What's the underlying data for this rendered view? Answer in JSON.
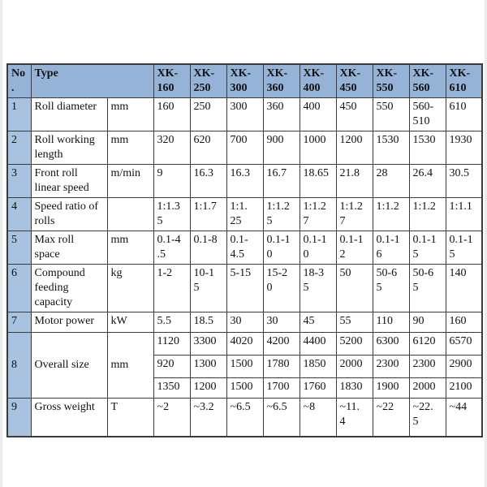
{
  "colors": {
    "header_bg": "#95b3d7",
    "number_col_bg": "#a9c2df",
    "border": "#3a3a3a",
    "text": "#111111"
  },
  "table": {
    "header": {
      "no": "No.",
      "type": "Type",
      "models": [
        "XK-160",
        "XK-250",
        "XK-300",
        "XK-360",
        "XK-400",
        "XK-450",
        "XK-550",
        "XK-560",
        "XK-610"
      ]
    },
    "rows": [
      {
        "no": "1",
        "type": "Roll diameter",
        "unit": "mm",
        "values": [
          "160",
          "250",
          "300",
          "360",
          "400",
          "450",
          "550",
          "560-\n510",
          "610"
        ]
      },
      {
        "no": "2",
        "type": "Roll working\nlength",
        "unit": "mm",
        "values": [
          "320",
          "620",
          "700",
          "900",
          "1000",
          "1200",
          "1530",
          "1530",
          "1930"
        ]
      },
      {
        "no": "3",
        "type": "Front roll\nlinear speed",
        "unit": "m/min",
        "values": [
          "9",
          "16.3",
          "16.3",
          "16.7",
          "18.65",
          "21.8",
          "28",
          "26.4",
          "30.5"
        ]
      },
      {
        "no": "4",
        "type": "Speed ratio of\nrolls",
        "unit": "",
        "values": [
          "1:1.3\n5",
          "1:1.7",
          "1:1.\n25",
          "1:1.2\n5",
          "1:1.2\n7",
          "1:1.2\n7",
          "1:1.2",
          "1:1.2",
          "1:1.1"
        ]
      },
      {
        "no": "5",
        "type": "Max roll\nspace",
        "unit": "mm",
        "values": [
          "0.1-4\n.5",
          "0.1-8",
          "0.1-\n4.5",
          "0.1-1\n0",
          "0.1-1\n0",
          "0.1-1\n2",
          "0.1-1\n6",
          "0.1-1\n5",
          "0.1-1\n5"
        ]
      },
      {
        "no": "6",
        "type": "Compound\nfeeding\ncapacity",
        "unit": "kg",
        "values": [
          "1-2",
          "10-1\n5",
          "5-15",
          "15-2\n0",
          "18-3\n5",
          "50",
          "50-6\n5",
          "50-6\n5",
          "140"
        ]
      },
      {
        "no": "7",
        "type": "Motor power",
        "unit": "kW",
        "values": [
          "5.5",
          "18.5",
          "30",
          "30",
          "45",
          "55",
          "110",
          "90",
          "160"
        ]
      },
      {
        "no": "8",
        "type": "Overall size",
        "unit": "mm",
        "subrows": [
          [
            "1120",
            "3300",
            "4020",
            "4200",
            "4400",
            "5200",
            "6300",
            "6120",
            "6570"
          ],
          [
            "920",
            "1300",
            "1500",
            "1780",
            "1850",
            "2000",
            "2300",
            "2300",
            "2900"
          ],
          [
            "1350",
            "1200",
            "1500",
            "1700",
            "1760",
            "1830",
            "1900",
            "2000",
            "2100"
          ]
        ]
      },
      {
        "no": "9",
        "type": "Gross weight",
        "unit": "T",
        "values": [
          "~2",
          "~3.2",
          "~6.5",
          "~6.5",
          "~8",
          "~11.\n4",
          "~22",
          "~22.\n5",
          "~44"
        ]
      }
    ]
  }
}
